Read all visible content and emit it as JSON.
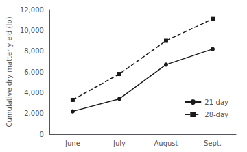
{
  "chart_data": {
    "type": "line",
    "categories": [
      "June",
      "July",
      "August",
      "Sept."
    ],
    "series": [
      {
        "name": "21-day",
        "color": "#1a1a1a",
        "values": [
          2200,
          3400,
          6700,
          8200
        ],
        "marker": "circle",
        "line_style": "solid"
      },
      {
        "name": "28-day",
        "color": "#1a1a1a",
        "values": [
          3300,
          5800,
          9000,
          11100
        ],
        "marker": "square",
        "line_style": "dashed"
      }
    ],
    "ylabel": "Cumulative dry matter yield (lb)",
    "ylim": [
      0,
      12000
    ],
    "yticks": [
      0,
      {
        "value": 2000,
        "label": "2,000"
      },
      {
        "value": 4000,
        "label": "4,000"
      },
      {
        "value": 6000,
        "label": "6,000"
      },
      {
        "value": 8000,
        "label": "8,000"
      },
      {
        "value": 10000,
        "label": "10,000"
      },
      {
        "value": 12000,
        "label": "12,000"
      }
    ],
    "grid": false,
    "legend": "lower right"
  }
}
